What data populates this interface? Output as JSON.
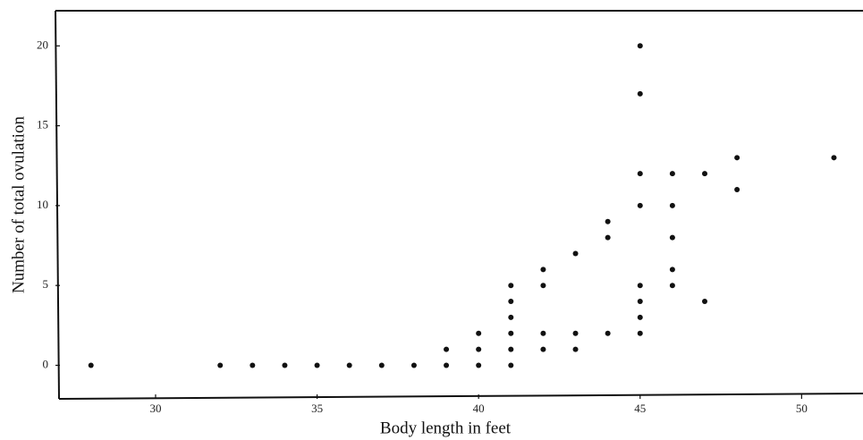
{
  "chart_data": {
    "type": "scatter",
    "x_label": "Body length in feet",
    "y_label": "Number of total ovulation",
    "x": [
      28,
      32,
      33,
      34,
      35,
      36,
      37,
      38,
      39,
      39,
      40,
      40,
      40,
      41,
      41,
      41,
      41,
      41,
      41,
      42,
      42,
      42,
      42,
      43,
      43,
      43,
      44,
      44,
      44,
      45,
      45,
      45,
      45,
      45,
      45,
      45,
      45,
      46,
      46,
      46,
      46,
      46,
      47,
      47,
      48,
      48,
      51
    ],
    "values": [
      0,
      0,
      0,
      0,
      0,
      0,
      0,
      0,
      0,
      1,
      0,
      1,
      2,
      0,
      1,
      2,
      3,
      4,
      5,
      1,
      2,
      5,
      6,
      1,
      2,
      7,
      2,
      8,
      9,
      2,
      3,
      4,
      5,
      10,
      12,
      17,
      20,
      5,
      6,
      8,
      10,
      12,
      4,
      12,
      11,
      13,
      13
    ],
    "color": "#111111",
    "xlim": [
      26.9,
      51.9
    ],
    "ylim": [
      -2.1,
      22.2
    ],
    "xticks": [
      30,
      35,
      40,
      45,
      50
    ],
    "yticks": [
      0,
      5,
      10,
      15,
      20
    ]
  }
}
